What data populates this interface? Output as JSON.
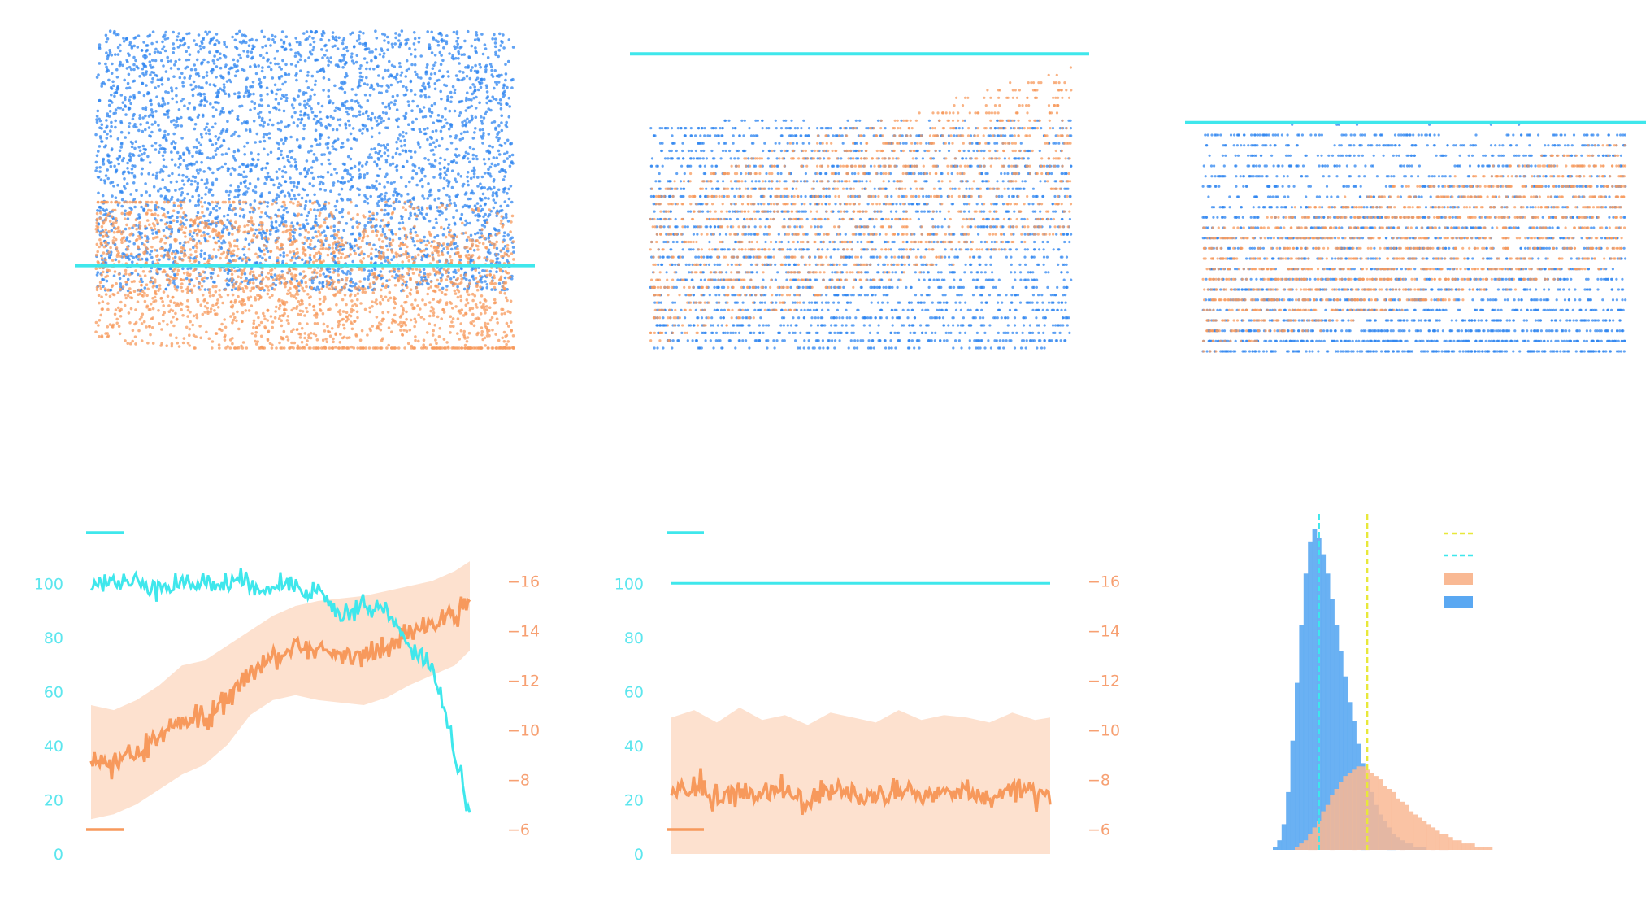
{
  "colors": {
    "blue": "#2f86f0",
    "orange": "#f7995c",
    "orange_band": "#fcd9c3",
    "cyan": "#3fe7ec",
    "yellow": "#e8e83a",
    "histogram_blue": "#5aa8f2",
    "histogram_orange": "#f9b994"
  },
  "chart_data": [
    {
      "type": "scatter",
      "title": "",
      "series": [
        {
          "color": "blue",
          "y_range": [
            0.18,
            1.0
          ],
          "points": 9000
        },
        {
          "color": "orange",
          "y_range": [
            0.0,
            0.45
          ],
          "trend": "descending",
          "points": 5000
        }
      ],
      "threshold": {
        "orientation": "horizontal",
        "y": 0.26,
        "color": "cyan"
      },
      "grid": false
    },
    {
      "type": "scatter",
      "title": "",
      "series": [
        {
          "color": "blue",
          "y_range": [
            0.0,
            0.75
          ],
          "discrete_levels": 40
        },
        {
          "color": "orange",
          "y_range": [
            0.0,
            1.0
          ],
          "trend": "ascending",
          "discrete_levels": 40
        }
      ],
      "threshold": {
        "orientation": "horizontal",
        "y": 0.97,
        "color": "cyan"
      },
      "grid": false
    },
    {
      "type": "scatter",
      "title": "",
      "series": [
        {
          "color": "blue",
          "y_range": [
            0.0,
            0.75
          ],
          "discrete_levels": 30
        },
        {
          "color": "orange",
          "y_range": [
            0.0,
            0.75
          ],
          "trend": "ascending",
          "discrete_levels": 30
        }
      ],
      "threshold": {
        "orientation": "horizontal",
        "y": 0.74,
        "color": "cyan"
      },
      "grid": false
    },
    {
      "type": "line",
      "title": "",
      "ylim_left": [
        0,
        110
      ],
      "yticks_left": [
        "100",
        "80",
        "60",
        "40",
        "20",
        "0"
      ],
      "ylim_right": [
        -5,
        -17
      ],
      "yticks_right": [
        "−16",
        "−14",
        "−12",
        "−10",
        "−8",
        "−6"
      ],
      "x": [
        0,
        6,
        12,
        18,
        24,
        30,
        36,
        42,
        48,
        54,
        60,
        66,
        72,
        78,
        84,
        90,
        96,
        100
      ],
      "series": [
        {
          "axis": "left",
          "color": "cyan",
          "values": [
            100,
            100,
            100,
            100,
            100,
            100,
            100,
            100,
            99,
            100,
            97,
            88,
            92,
            90,
            76,
            70,
            38,
            15
          ]
        },
        {
          "axis": "right",
          "color": "orange",
          "values": [
            -8.7,
            -8.6,
            -9.1,
            -9.7,
            -10.4,
            -10.5,
            -11.2,
            -12.3,
            -12.9,
            -13.3,
            -13.2,
            -13.0,
            -13.1,
            -13.4,
            -13.8,
            -14.2,
            -14.6,
            -15.2
          ]
        },
        {
          "axis": "right",
          "color": "orange_band",
          "band_low": [
            -6.4,
            -6.6,
            -7.0,
            -7.6,
            -8.2,
            -8.6,
            -9.4,
            -10.6,
            -11.2,
            -11.4,
            -11.2,
            -11.1,
            -11.0,
            -11.3,
            -11.8,
            -12.2,
            -12.6,
            -13.2
          ],
          "band_high": [
            -11.0,
            -10.8,
            -11.2,
            -11.8,
            -12.6,
            -12.8,
            -13.4,
            -14.0,
            -14.6,
            -15.0,
            -15.2,
            -15.3,
            -15.4,
            -15.6,
            -15.8,
            -16.0,
            -16.4,
            -16.8
          ]
        }
      ],
      "grid": false
    },
    {
      "type": "line",
      "title": "",
      "ylim_left": [
        0,
        110
      ],
      "yticks_left": [
        "100",
        "80",
        "60",
        "40",
        "20",
        "0"
      ],
      "ylim_right": [
        -5,
        -17
      ],
      "yticks_right": [
        "−16",
        "−14",
        "−12",
        "−10",
        "−8",
        "−6"
      ],
      "x": [
        0,
        6,
        12,
        18,
        24,
        30,
        36,
        42,
        48,
        54,
        60,
        66,
        72,
        78,
        84,
        90,
        96,
        100
      ],
      "series": [
        {
          "axis": "left",
          "color": "cyan",
          "values": [
            100,
            100,
            100,
            100,
            100,
            100,
            100,
            100,
            100,
            100,
            100,
            100,
            100,
            100,
            100,
            100,
            100,
            100
          ]
        },
        {
          "axis": "right",
          "color": "orange",
          "values": [
            -7.4,
            -7.9,
            -7.2,
            -7.6,
            -7.3,
            -7.5,
            -7.1,
            -7.8,
            -7.4,
            -7.2,
            -7.7,
            -7.3,
            -7.6,
            -7.4,
            -7.2,
            -7.8,
            -7.3,
            -7.4
          ]
        },
        {
          "axis": "right",
          "color": "orange_band",
          "band_low": [
            -5.0,
            -5.0,
            -5.0,
            -5.0,
            -5.0,
            -5.0,
            -5.0,
            -5.0,
            -5.0,
            -5.0,
            -5.0,
            -5.0,
            -5.0,
            -5.0,
            -5.0,
            -5.0,
            -5.0,
            -5.0
          ],
          "band_high": [
            -10.5,
            -10.8,
            -10.3,
            -10.9,
            -10.4,
            -10.6,
            -10.2,
            -10.7,
            -10.5,
            -10.3,
            -10.8,
            -10.4,
            -10.6,
            -10.5,
            -10.3,
            -10.7,
            -10.4,
            -10.5
          ]
        }
      ],
      "grid": false
    },
    {
      "type": "bar",
      "title": "",
      "histogram": true,
      "bins": 60,
      "series": [
        {
          "color": "histogram_blue",
          "counts": [
            1,
            3,
            8,
            18,
            34,
            52,
            70,
            86,
            96,
            100,
            97,
            92,
            86,
            78,
            70,
            62,
            54,
            46,
            40,
            33,
            27,
            22,
            18,
            14,
            11,
            9,
            7,
            5,
            4,
            3,
            2,
            2,
            1,
            1,
            1,
            0,
            0,
            0,
            0,
            0,
            0,
            0,
            0,
            0,
            0,
            0,
            0,
            0,
            0,
            0,
            0,
            0,
            0,
            0,
            0,
            0,
            0,
            0,
            0,
            0
          ]
        },
        {
          "color": "histogram_orange",
          "counts": [
            0,
            0,
            0,
            0,
            0,
            1,
            2,
            3,
            5,
            7,
            9,
            12,
            14,
            17,
            19,
            21,
            23,
            24,
            25,
            26,
            26,
            25,
            24,
            23,
            22,
            20,
            19,
            18,
            16,
            15,
            14,
            12,
            11,
            10,
            9,
            8,
            7,
            6,
            5,
            5,
            4,
            3,
            3,
            2,
            2,
            2,
            1,
            1,
            1,
            1,
            0,
            0,
            0,
            0,
            0,
            0,
            0,
            0,
            0,
            0
          ]
        }
      ],
      "vlines": [
        {
          "color": "cyan",
          "style": "dashed",
          "bin": 10
        },
        {
          "color": "yellow",
          "style": "dashed",
          "bin": 21
        }
      ],
      "legend": {
        "placement": "top-right",
        "entries": [
          {
            "color": "yellow",
            "style": "dashed-line"
          },
          {
            "color": "cyan",
            "style": "dashed-line"
          },
          {
            "color": "histogram_orange",
            "style": "patch"
          },
          {
            "color": "histogram_blue",
            "style": "patch"
          }
        ]
      },
      "grid": false
    }
  ]
}
